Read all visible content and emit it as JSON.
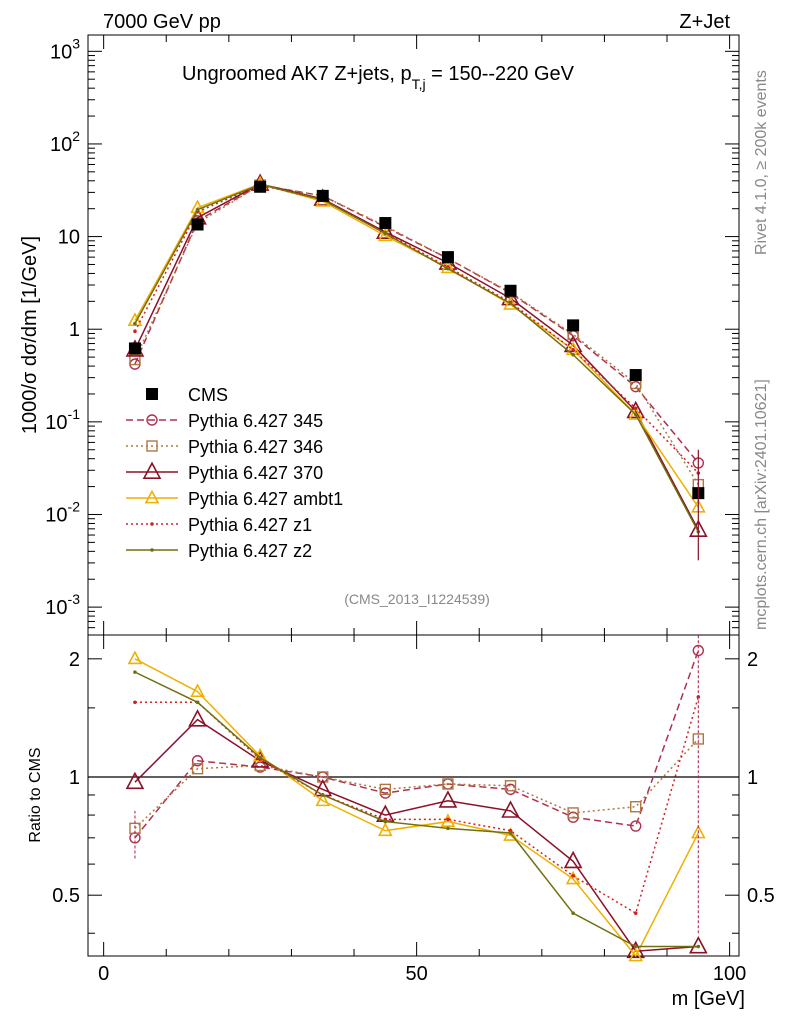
{
  "header": {
    "left": "7000 GeV pp",
    "right": "Z+Jet"
  },
  "side_text": {
    "rivet": "Rivet 4.1.0, ≥ 200k events",
    "mcplots": "mcplots.cern.ch [arXiv:2401.10621]"
  },
  "chart_data": [
    {
      "type": "line",
      "panel": "main",
      "title_main": "Ungroomed AK7 Z+jets, p",
      "title_sub": "T,j",
      "title_tail": " = 150--220 GeV",
      "ylabel": "1000/σ  dσ/dm [1/GeV]",
      "xlabel": "m [GeV]",
      "yscale": "log",
      "ylim": [
        0.0005,
        1500
      ],
      "xlim": [
        -2.5,
        101.5
      ],
      "watermark": "(CMS_2013_I1224539)",
      "y_tick_labels": [
        "10^-3",
        "10^-2",
        "10^-1",
        "1",
        "10",
        "10^2",
        "10^3"
      ],
      "x": [
        5,
        15,
        25,
        35,
        45,
        55,
        65,
        75,
        85,
        95
      ],
      "legend_position": "middle-left",
      "series": [
        {
          "name": "CMS",
          "style": "data",
          "color": "#000000",
          "values": [
            0.62,
            13.5,
            34.5,
            27.5,
            14.0,
            6.0,
            2.6,
            1.1,
            0.32,
            0.017
          ]
        },
        {
          "name": "Pythia 6.427 345",
          "style": "circle-dashed",
          "color": "#b03050",
          "values": [
            0.42,
            14.8,
            36.0,
            27.5,
            12.7,
            5.8,
            2.45,
            0.85,
            0.24,
            0.036
          ]
        },
        {
          "name": "Pythia 6.427 346",
          "style": "square-dotted",
          "color": "#b07840",
          "values": [
            0.47,
            14.0,
            36.0,
            27.5,
            13.0,
            5.8,
            2.5,
            0.88,
            0.26,
            0.021
          ]
        },
        {
          "name": "Pythia 6.427 370",
          "style": "triangle-solid",
          "color": "#8b1028",
          "values": [
            0.6,
            16.0,
            37.0,
            25.5,
            11.2,
            5.2,
            2.15,
            0.67,
            0.13,
            0.0068
          ]
        },
        {
          "name": "Pythia 6.427 ambt1",
          "style": "triangle-solid",
          "color": "#f0b000",
          "values": [
            1.24,
            20.5,
            37.0,
            24.0,
            10.2,
            4.6,
            1.85,
            0.6,
            0.12,
            0.012
          ]
        },
        {
          "name": "Pythia 6.427 z1",
          "style": "dot-dotted",
          "color": "#d42020",
          "values": [
            0.95,
            18.5,
            36.0,
            25.0,
            11.0,
            4.7,
            1.95,
            0.6,
            0.14,
            0.028
          ]
        },
        {
          "name": "Pythia 6.427 z2",
          "style": "dot-solid",
          "color": "#707010",
          "values": [
            1.15,
            19.5,
            36.5,
            25.0,
            10.8,
            4.5,
            1.9,
            0.53,
            0.12,
            0.0065
          ]
        }
      ]
    },
    {
      "type": "line",
      "panel": "ratio",
      "ylabel": "Ratio to CMS",
      "ylim": [
        0.35,
        2.3
      ],
      "y_ticks": [
        0.5,
        1,
        2
      ],
      "y_tick_labels": [
        "0.5",
        "1",
        "2"
      ],
      "x_ticks": [
        0,
        50,
        100
      ],
      "x_tick_labels": [
        "0",
        "50",
        "100"
      ],
      "reference_line": 1,
      "x": [
        5,
        15,
        25,
        35,
        45,
        55,
        65,
        75,
        85,
        95
      ],
      "series": [
        {
          "name": "Pythia 6.427 345",
          "values": [
            0.7,
            1.1,
            1.06,
            1.0,
            0.91,
            0.96,
            0.93,
            0.79,
            0.75,
            2.1
          ]
        },
        {
          "name": "Pythia 6.427 346",
          "values": [
            0.74,
            1.05,
            1.07,
            1.0,
            0.93,
            0.96,
            0.95,
            0.81,
            0.84,
            1.25
          ]
        },
        {
          "name": "Pythia 6.427 370",
          "values": [
            0.97,
            1.4,
            1.1,
            0.93,
            0.8,
            0.87,
            0.82,
            0.61,
            0.36,
            0.37
          ]
        },
        {
          "name": "Pythia 6.427 ambt1",
          "values": [
            2.0,
            1.65,
            1.13,
            0.87,
            0.73,
            0.77,
            0.71,
            0.55,
            0.35,
            0.72
          ]
        },
        {
          "name": "Pythia 6.427 z1",
          "values": [
            1.55,
            1.55,
            1.11,
            0.9,
            0.78,
            0.78,
            0.73,
            0.56,
            0.45,
            1.6
          ]
        },
        {
          "name": "Pythia 6.427 z2",
          "values": [
            1.85,
            1.55,
            1.12,
            0.9,
            0.77,
            0.74,
            0.72,
            0.45,
            0.37,
            0.37
          ]
        }
      ]
    }
  ]
}
